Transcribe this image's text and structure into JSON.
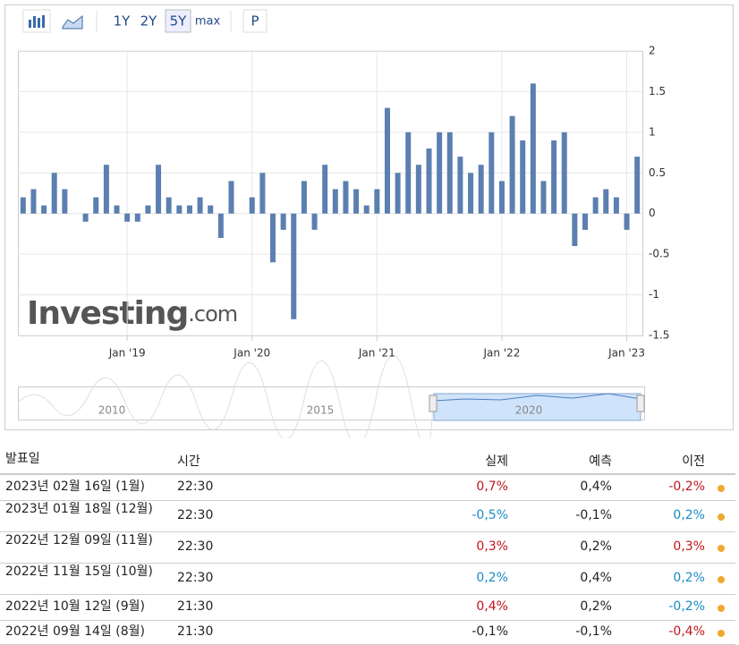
{
  "toolbar": {
    "ranges": [
      "1Y",
      "2Y",
      "5Y",
      "max"
    ],
    "active_range": "5Y",
    "p_button": "P"
  },
  "watermark": {
    "brand": "Investing",
    "suffix": ".com"
  },
  "chart_data": {
    "type": "bar",
    "categories": [
      null,
      null,
      null,
      null,
      null,
      null,
      null,
      null,
      null,
      null,
      "Jan '19",
      null,
      null,
      null,
      null,
      null,
      null,
      null,
      null,
      null,
      null,
      null,
      "Jan '20",
      null,
      null,
      null,
      null,
      null,
      null,
      null,
      null,
      null,
      null,
      null,
      "Jan '21",
      null,
      null,
      null,
      null,
      null,
      null,
      null,
      null,
      null,
      null,
      null,
      "Jan '22",
      null,
      null,
      null,
      null,
      null,
      null,
      null,
      null,
      null,
      null,
      null,
      "Jan '23",
      null
    ],
    "values": [
      0.2,
      0.3,
      0.1,
      0.5,
      0.3,
      0,
      -0.1,
      0.2,
      0.6,
      0.1,
      -0.1,
      -0.1,
      0.1,
      0.6,
      0.2,
      0.1,
      0.1,
      0.2,
      0.1,
      -0.3,
      0.4,
      0,
      0.2,
      0.5,
      -0.6,
      -0.2,
      -1.3,
      0.4,
      -0.2,
      0.6,
      0.3,
      0.4,
      0.3,
      0.1,
      0.3,
      1.3,
      0.5,
      1.0,
      0.6,
      0.8,
      1.0,
      1.0,
      0.7,
      0.5,
      0.6,
      1.0,
      0.4,
      1.2,
      0.9,
      1.6,
      0.4,
      0.9,
      1.0,
      -0.4,
      -0.2,
      0.2,
      0.3,
      0.2,
      -0.2,
      0.7
    ],
    "color": "#5b7fb0",
    "ylim": [
      -1.5,
      2
    ],
    "yticks": [
      -1.5,
      -1,
      -0.5,
      0,
      0.5,
      1,
      1.5,
      2
    ],
    "grid": true
  },
  "navigator": {
    "labels": [
      "2010",
      "2015",
      "2020"
    ]
  },
  "table": {
    "headers": [
      "발표일",
      "시간",
      "실제",
      "예측",
      "이전"
    ],
    "rows": [
      {
        "date": "2023년 02월 16일 (1월)",
        "time": "22:30",
        "actual": "0,7%",
        "actual_color": "#c0141c",
        "forecast": "0,4%",
        "previous": "-0,2%",
        "previous_color": "#c0141c"
      },
      {
        "date": "2023년 01월 18일 (12월)",
        "time": "22:30",
        "actual": "-0,5%",
        "actual_color": "#1a8cc4",
        "forecast": "-0,1%",
        "previous": "0,2%",
        "previous_color": "#1a8cc4"
      },
      {
        "date": "2022년 12월 09일 (11월)",
        "time": "22:30",
        "actual": "0,3%",
        "actual_color": "#c0141c",
        "forecast": "0,2%",
        "previous": "0,3%",
        "previous_color": "#c0141c"
      },
      {
        "date": "2022년 11월 15일 (10월)",
        "time": "22:30",
        "actual": "0,2%",
        "actual_color": "#1a8cc4",
        "forecast": "0,4%",
        "previous": "0,2%",
        "previous_color": "#1a8cc4"
      },
      {
        "date": "2022년 10월 12일 (9월)",
        "time": "21:30",
        "actual": "0,4%",
        "actual_color": "#c0141c",
        "forecast": "0,2%",
        "previous": "-0,2%",
        "previous_color": "#1a8cc4"
      },
      {
        "date": "2022년 09월 14일 (8월)",
        "time": "21:30",
        "actual": "-0,1%",
        "actual_color": "#222222",
        "forecast": "-0,1%",
        "previous": "-0,4%",
        "previous_color": "#c0141c"
      }
    ]
  }
}
